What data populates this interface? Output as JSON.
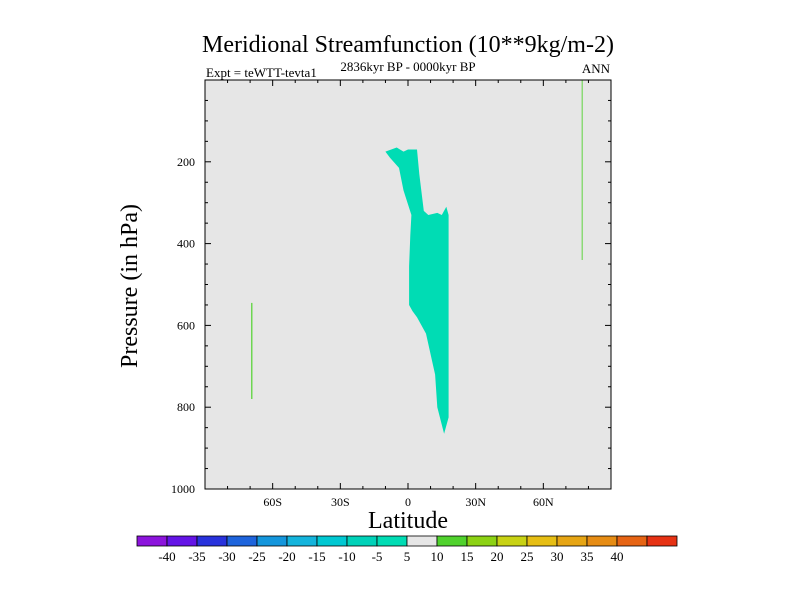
{
  "chart_data": {
    "type": "contour",
    "title": "Meridional Streamfunction (10**9kg/m-2)",
    "subtitle_left": "Expt = teWTT-tevta1",
    "subtitle_center": "2836kyr BP - 0000kyr BP",
    "subtitle_right": "ANN",
    "xlabel": "Latitude",
    "ylabel": "Pressure (in hPa)",
    "xlim": [
      -90,
      90
    ],
    "ylim": [
      1000,
      0
    ],
    "x_ticks": [
      {
        "value": -60,
        "label": "60S"
      },
      {
        "value": -30,
        "label": "30S"
      },
      {
        "value": 0,
        "label": "0"
      },
      {
        "value": 30,
        "label": "30N"
      },
      {
        "value": 60,
        "label": "60N"
      }
    ],
    "y_ticks": [
      {
        "value": 200,
        "label": "200"
      },
      {
        "value": 400,
        "label": "400"
      },
      {
        "value": 600,
        "label": "600"
      },
      {
        "value": 800,
        "label": "800"
      },
      {
        "value": 1000,
        "label": "1000"
      }
    ],
    "background_color": "#e6e6e6",
    "regions": [
      {
        "name": "negative-cell",
        "level": "-10 to -5",
        "color": "#00dcb4",
        "points": [
          [
            -10,
            175
          ],
          [
            -5,
            165
          ],
          [
            -2,
            175
          ],
          [
            0,
            170
          ],
          [
            4,
            170
          ],
          [
            5,
            230
          ],
          [
            7,
            320
          ],
          [
            9,
            330
          ],
          [
            13,
            325
          ],
          [
            15,
            330
          ],
          [
            17,
            310
          ],
          [
            18,
            330
          ],
          [
            18,
            825
          ],
          [
            16,
            865
          ],
          [
            13,
            800
          ],
          [
            12,
            720
          ],
          [
            11,
            695
          ],
          [
            8,
            620
          ],
          [
            4,
            580
          ],
          [
            2,
            565
          ],
          [
            0.5,
            550
          ],
          [
            0.5,
            455
          ],
          [
            1,
            380
          ],
          [
            1.5,
            330
          ],
          [
            -2,
            270
          ],
          [
            -4,
            215
          ],
          [
            -8,
            190
          ]
        ]
      },
      {
        "name": "positive-line-north",
        "level": "5 to 10",
        "color": "#50d22d",
        "points": [
          [
            77,
            0
          ],
          [
            77.4,
            0
          ],
          [
            77.4,
            440
          ],
          [
            77,
            440
          ]
        ]
      },
      {
        "name": "positive-line-south",
        "level": "5 to 10",
        "color": "#50d22d",
        "points": [
          [
            -69.5,
            545
          ],
          [
            -69,
            545
          ],
          [
            -69,
            780
          ],
          [
            -69.5,
            780
          ]
        ]
      }
    ],
    "colorbar": {
      "labels": [
        "-40",
        "-35",
        "-30",
        "-25",
        "-20",
        "-15",
        "-10",
        "-5",
        "5",
        "10",
        "15",
        "20",
        "25",
        "30",
        "35",
        "40"
      ],
      "colors": [
        "#8c14dc",
        "#6414e6",
        "#2832dc",
        "#1e64dc",
        "#1496dc",
        "#14b4dc",
        "#00c8d2",
        "#00d2b9",
        "#00dcb4",
        "#e6e6e6",
        "#50d22d",
        "#8cd214",
        "#c8d214",
        "#e6be14",
        "#e6a514",
        "#e68c14",
        "#e66414",
        "#e63214"
      ]
    }
  }
}
